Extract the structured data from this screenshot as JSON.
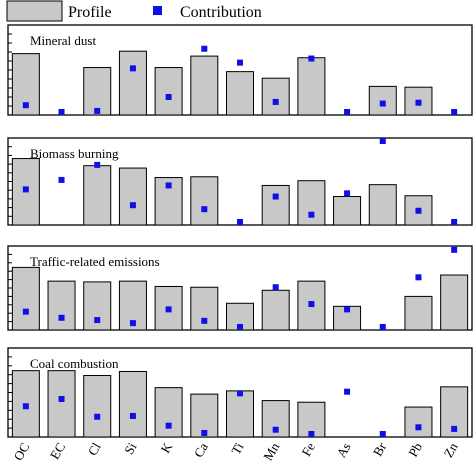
{
  "chart_data": {
    "type": "bar",
    "legend": {
      "position": "top",
      "entries": [
        {
          "name": "Profile",
          "kind": "bar"
        },
        {
          "name": "Contribution",
          "kind": "square-marker"
        }
      ]
    },
    "colors": {
      "bar": "#c8c8c8",
      "marker": "#1010e6"
    },
    "categories": [
      "OC",
      "EC",
      "Cl",
      "Si",
      "K",
      "Ca",
      "Ti",
      "Mn",
      "Fe",
      "As",
      "Br",
      "Pb",
      "Zn"
    ],
    "panels": [
      {
        "title": "Mineral dust",
        "profile": [
          0.75,
          null,
          0.58,
          0.78,
          0.58,
          0.72,
          0.53,
          0.45,
          0.7,
          null,
          0.35,
          0.34,
          null
        ],
        "contribution": [
          0.12,
          0.01,
          0.05,
          0.57,
          0.22,
          0.81,
          0.64,
          0.16,
          0.69,
          0.01,
          0.14,
          0.15,
          0.01
        ]
      },
      {
        "title": "Biomass burning",
        "profile": [
          0.84,
          null,
          0.75,
          0.72,
          0.6,
          0.61,
          null,
          0.5,
          0.56,
          0.36,
          0.51,
          0.37,
          null
        ],
        "contribution": [
          0.45,
          0.57,
          0.76,
          0.25,
          0.5,
          0.2,
          0.0,
          0.36,
          0.13,
          0.4,
          1.08,
          0.18,
          0.0
        ]
      },
      {
        "title": "Traffic-related emissions",
        "profile": [
          0.82,
          0.64,
          0.63,
          0.64,
          0.57,
          0.56,
          0.35,
          0.52,
          0.64,
          0.31,
          null,
          0.44,
          0.72
        ],
        "contribution": [
          0.24,
          0.16,
          0.13,
          0.09,
          0.27,
          0.12,
          0.04,
          0.56,
          0.34,
          0.27,
          0.0,
          0.69,
          1.05
        ]
      },
      {
        "title": "Coal combustion",
        "profile": [
          0.82,
          0.82,
          0.76,
          0.81,
          0.61,
          0.53,
          0.57,
          0.45,
          0.43,
          null,
          null,
          0.37,
          0.62
        ],
        "contribution": [
          0.38,
          0.47,
          0.25,
          0.26,
          0.14,
          0.05,
          0.54,
          0.09,
          0.0,
          0.56,
          0.0,
          0.12,
          0.1
        ]
      }
    ],
    "ylim": [
      0,
      1.1
    ],
    "grid": false
  }
}
